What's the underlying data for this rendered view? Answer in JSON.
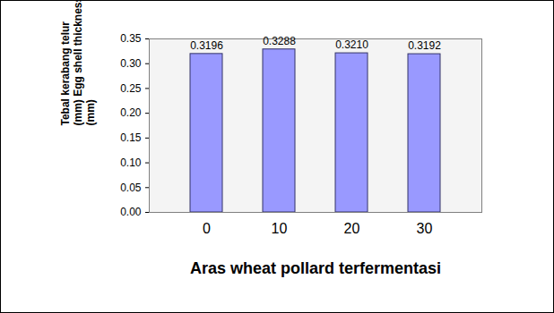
{
  "chart_data": {
    "type": "bar",
    "y_label": "Tebal kerabang telur\n(mm) Egg shell thickness\n(mm)",
    "x_label": "Aras wheat pollard terfermentasi",
    "categories": [
      "0",
      "10",
      "20",
      "30"
    ],
    "values": [
      0.3196,
      0.3288,
      0.321,
      0.3192
    ],
    "value_labels": [
      "0.3196",
      "0.3288",
      "0.3210",
      "0.3192"
    ],
    "color": "#9999ff",
    "ylim": [
      0,
      0.35
    ],
    "yticks": [
      {
        "value": 0,
        "label": "0.00"
      },
      0.05,
      {
        "value": 0.1,
        "label": "0.10"
      },
      0.15,
      {
        "value": 0.2,
        "label": "0.20"
      },
      0.25,
      {
        "value": 0.3,
        "label": "0.30"
      },
      0.35
    ],
    "grid": false,
    "data_labels": true
  }
}
